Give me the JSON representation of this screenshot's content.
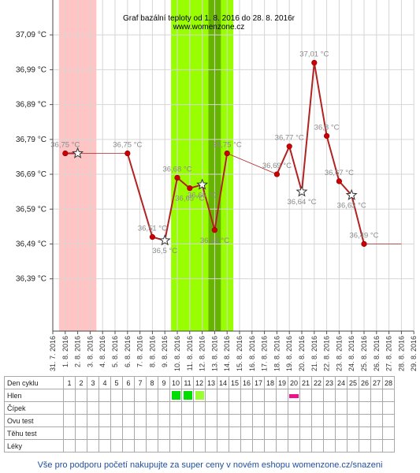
{
  "chart_data": {
    "type": "line",
    "title": "Graf bazální teploty od 1. 8. 2016 do 28. 8. 2016r",
    "subtitle": "www.womenzone.cz",
    "x_labels": [
      "31. 7. 2016",
      "1. 8. 2016",
      "2. 8. 2016",
      "3. 8. 2016",
      "4. 8. 2016",
      "5. 8. 2016",
      "6. 8. 2016",
      "7. 8. 2016",
      "8. 8. 2016",
      "9. 8. 2016",
      "10. 8. 2016",
      "11. 8. 2016",
      "12. 8. 2016",
      "13. 8. 2016",
      "14. 8. 2016",
      "15. 8. 2016",
      "16. 8. 2016",
      "17. 8. 2016",
      "18. 8. 2016",
      "19. 8. 2016",
      "20. 8. 2016",
      "21. 8. 2016",
      "22. 8. 2016",
      "23. 8. 2016",
      "24. 8. 2016",
      "25. 8. 2016",
      "26. 8. 2016",
      "27. 8. 2016",
      "28. 8. 2016",
      "29. 8. 2016"
    ],
    "y_ticks": [
      "36,39 °C",
      "36,49 °C",
      "36,59 °C",
      "36,69 °C",
      "36,79 °C",
      "36,89 °C",
      "36,99 °C",
      "37,09 °C"
    ],
    "y_tick_values": [
      36.39,
      36.49,
      36.59,
      36.69,
      36.79,
      36.89,
      36.99,
      37.09
    ],
    "ylim": [
      36.24,
      37.19
    ],
    "grid": true,
    "points": [
      {
        "day": 1,
        "value": 36.75,
        "label": "36,75 °C",
        "marker": "dot"
      },
      {
        "day": 2,
        "value": 36.75,
        "label": "",
        "marker": "star"
      },
      {
        "day": 6,
        "value": 36.75,
        "label": "36,75 °C",
        "marker": "dot"
      },
      {
        "day": 8,
        "value": 36.51,
        "label": "36,51 °C",
        "marker": "dot"
      },
      {
        "day": 9,
        "value": 36.5,
        "label": "36,5 °C",
        "marker": "star"
      },
      {
        "day": 10,
        "value": 36.68,
        "label": "36,68 °C",
        "marker": "dot"
      },
      {
        "day": 11,
        "value": 36.65,
        "label": "36,65 °C",
        "marker": "dot"
      },
      {
        "day": 12,
        "value": 36.66,
        "label": "36,66 °C",
        "marker": "star"
      },
      {
        "day": 13,
        "value": 36.53,
        "label": "36,53 °C",
        "marker": "dot"
      },
      {
        "day": 14,
        "value": 36.75,
        "label": "36,75 °C",
        "marker": "dot"
      },
      {
        "day": 18,
        "value": 36.69,
        "label": "36,69 °C",
        "marker": "dot"
      },
      {
        "day": 19,
        "value": 36.77,
        "label": "36,77 °C",
        "marker": "dot"
      },
      {
        "day": 20,
        "value": 36.64,
        "label": "36,64 °C",
        "marker": "star"
      },
      {
        "day": 21,
        "value": 37.01,
        "label": "37,01 °C",
        "marker": "dot"
      },
      {
        "day": 22,
        "value": 36.8,
        "label": "36,8 °C",
        "marker": "dot"
      },
      {
        "day": 23,
        "value": 36.67,
        "label": "36,67 °C",
        "marker": "dot"
      },
      {
        "day": 24,
        "value": 36.63,
        "label": "36,63 °C",
        "marker": "star"
      },
      {
        "day": 25,
        "value": 36.49,
        "label": "36,49 °C",
        "marker": "dot"
      }
    ],
    "interpolated_segments": [
      [
        2,
        6
      ],
      [
        14,
        18
      ],
      [
        25,
        28
      ]
    ],
    "highlight_bands": [
      {
        "from_day": 1,
        "to_day": 3,
        "color": "#ffc4c4"
      },
      {
        "from_day": 10,
        "to_day": 14,
        "color": "#99ff00"
      },
      {
        "from_day": 13,
        "to_day": 13,
        "color": "#66b300"
      }
    ],
    "line_color": "#b22222",
    "marker_color": "#cc0000"
  },
  "table": {
    "days": [
      "1",
      "2",
      "3",
      "4",
      "5",
      "6",
      "7",
      "8",
      "9",
      "10",
      "11",
      "12",
      "13",
      "14",
      "15",
      "16",
      "17",
      "18",
      "19",
      "20",
      "21",
      "22",
      "23",
      "24",
      "25",
      "26",
      "27",
      "28"
    ],
    "rows": [
      {
        "label": "Den cyklu",
        "show_days": true,
        "marks": []
      },
      {
        "label": "Hlen",
        "show_days": false,
        "marks": [
          {
            "day": 10,
            "color": "#00dd00",
            "kind": "square"
          },
          {
            "day": 11,
            "color": "#00dd00",
            "kind": "square"
          },
          {
            "day": 12,
            "color": "#99ff33",
            "kind": "square"
          },
          {
            "day": 20,
            "color": "#ee1188",
            "kind": "bar"
          }
        ]
      },
      {
        "label": "Čípek",
        "show_days": false,
        "marks": []
      },
      {
        "label": "Ovu test",
        "show_days": false,
        "marks": []
      },
      {
        "label": "Těhu test",
        "show_days": false,
        "marks": []
      },
      {
        "label": "Léky",
        "show_days": false,
        "marks": []
      }
    ]
  },
  "footer": {
    "text": "Vše pro podporu početí nakupujte za super ceny v novém eshopu womenzone.cz/snazeni"
  }
}
